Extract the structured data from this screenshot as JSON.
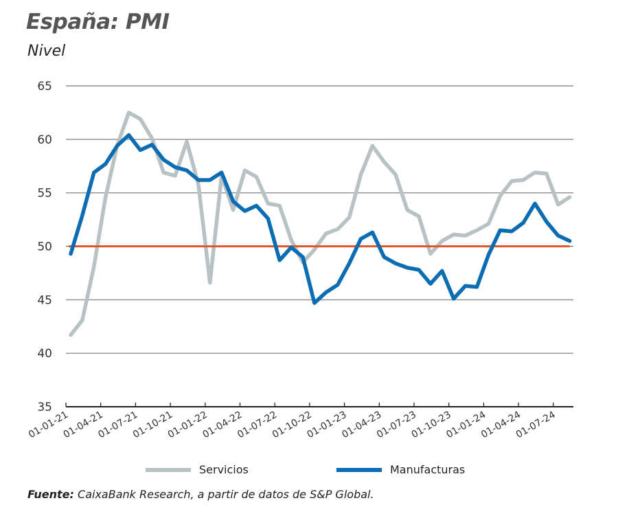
{
  "chart_data": {
    "type": "line",
    "title": "España: PMI",
    "subtitle": "Nivel",
    "ylim": [
      35,
      65
    ],
    "yticks": [
      35,
      40,
      45,
      50,
      55,
      60,
      65
    ],
    "grid": true,
    "reference_line": {
      "value": 50,
      "color": "#e0582a"
    },
    "x_start": "2021-01",
    "xtick_labels": [
      "01-01-21",
      "01-04-21",
      "01-07-21",
      "01-10-21",
      "01-01-22",
      "01-04-22",
      "01-07-22",
      "01-10-22",
      "01-01-23",
      "01-04-23",
      "01-07-23",
      "01-10-23",
      "01-01-24",
      "01-04-24",
      "01-07-24"
    ],
    "legend_position": "bottom",
    "series": [
      {
        "name": "Servicios",
        "color": "#b8c1c3",
        "values": [
          41.7,
          43.1,
          48.1,
          54.6,
          59.4,
          62.5,
          61.9,
          60.1,
          56.9,
          56.6,
          59.8,
          55.8,
          46.6,
          56.6,
          53.4,
          57.1,
          56.5,
          54.0,
          53.8,
          50.6,
          48.5,
          49.7,
          51.2,
          51.6,
          52.7,
          56.7,
          59.4,
          57.9,
          56.7,
          53.4,
          52.8,
          49.3,
          50.5,
          51.1,
          51.0,
          51.5,
          52.1,
          54.7,
          56.1,
          56.2,
          56.9,
          56.8,
          53.9,
          54.6
        ]
      },
      {
        "name": "Manufacturas",
        "color": "#0a6db3",
        "values": [
          49.3,
          52.9,
          56.9,
          57.7,
          59.4,
          60.4,
          59.0,
          59.5,
          58.1,
          57.4,
          57.1,
          56.2,
          56.2,
          56.9,
          54.2,
          53.3,
          53.8,
          52.6,
          48.7,
          49.9,
          49.0,
          44.7,
          45.7,
          46.4,
          48.4,
          50.7,
          51.3,
          49.0,
          48.4,
          48.0,
          47.8,
          46.5,
          47.7,
          45.1,
          46.3,
          46.2,
          49.2,
          51.5,
          51.4,
          52.2,
          54.0,
          52.3,
          51.0,
          50.5
        ]
      }
    ]
  },
  "source": {
    "label": "Fuente:",
    "text": "CaixaBank Research, a partir de datos de S&P Global."
  }
}
